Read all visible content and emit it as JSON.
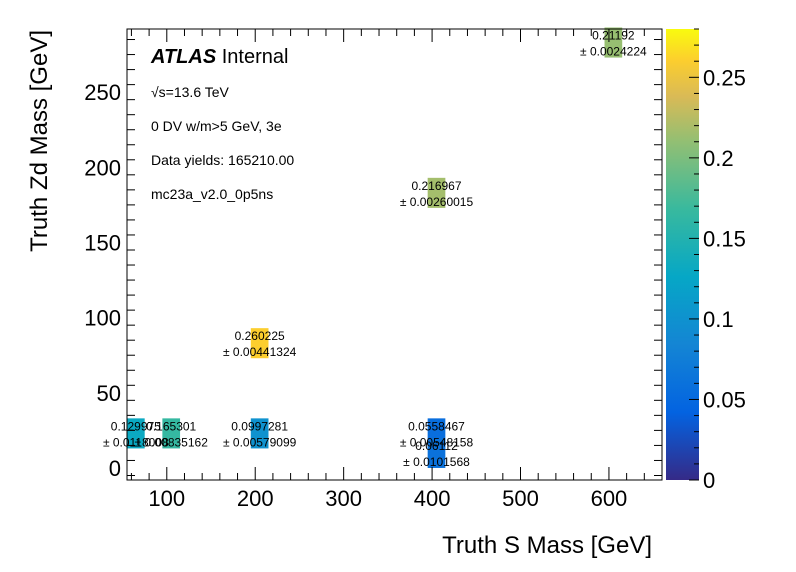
{
  "chart_data": {
    "type": "heatmap",
    "title": "",
    "xlabel": "Truth S Mass [GeV]",
    "ylabel": "Truth Zd Mass [GeV]",
    "xlim": [
      55,
      660
    ],
    "ylim": [
      -8,
      292
    ],
    "xticks": [
      100,
      200,
      300,
      400,
      500,
      600
    ],
    "yticks": [
      0,
      50,
      100,
      150,
      200,
      250
    ],
    "colorbar": {
      "range": [
        0,
        0.28
      ],
      "ticks": [
        "0",
        "0.05",
        "0.1",
        "0.15",
        "0.2",
        "0.25"
      ],
      "tick_values": [
        0,
        0.05,
        0.1,
        0.15,
        0.2,
        0.25
      ]
    },
    "annotations": {
      "experiment": "ATLAS",
      "status": "Internal",
      "energy": "√s=13.6 TeV",
      "selection": "0 DV w/m>5 GeV, 3e",
      "yields": "Data yields: 165210.00",
      "sample": "mc23a_v2.0_0p5ns"
    },
    "cells": [
      {
        "x": 65,
        "y": 23,
        "value": 0.129975,
        "value_label": "0.129975",
        "error_label": "± 0.0118008"
      },
      {
        "x": 105,
        "y": 23,
        "value": 0.165301,
        "value_label": "0.165301",
        "error_label": "± 0.00835162"
      },
      {
        "x": 205,
        "y": 23,
        "value": 0.0997281,
        "value_label": "0.0997281",
        "error_label": "± 0.00579099"
      },
      {
        "x": 405,
        "y": 23,
        "value": 0.0558467,
        "value_label": "0.0558467",
        "error_label": "± 0.00548158"
      },
      {
        "x": 405,
        "y": 10,
        "value": 0.06112,
        "value_label": "0.06112",
        "error_label": "± 0.0101568"
      },
      {
        "x": 205,
        "y": 83,
        "value": 0.260225,
        "value_label": "0.260225",
        "error_label": "± 0.00441324"
      },
      {
        "x": 405,
        "y": 183,
        "value": 0.216967,
        "value_label": "0.216967",
        "error_label": "± 0.00260015"
      },
      {
        "x": 605,
        "y": 283,
        "value": 0.21192,
        "value_label": "0.21192",
        "error_label": "± 0.0024224"
      }
    ]
  }
}
